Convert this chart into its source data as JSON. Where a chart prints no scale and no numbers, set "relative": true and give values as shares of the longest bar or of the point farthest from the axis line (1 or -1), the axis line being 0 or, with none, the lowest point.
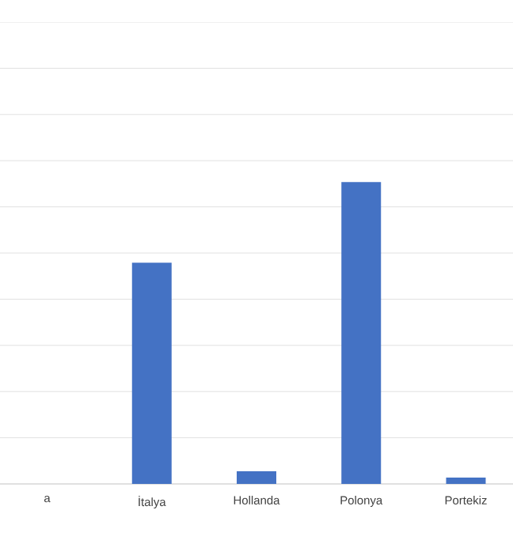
{
  "chart_data": {
    "type": "bar",
    "relative": true,
    "categories": [
      "a",
      "İtalya",
      "Hollanda",
      "Polonya",
      "Portekiz"
    ],
    "values": [
      null,
      0.733,
      0.042,
      1,
      0.021
    ],
    "color": "#4472c4",
    "grid": "y"
  }
}
